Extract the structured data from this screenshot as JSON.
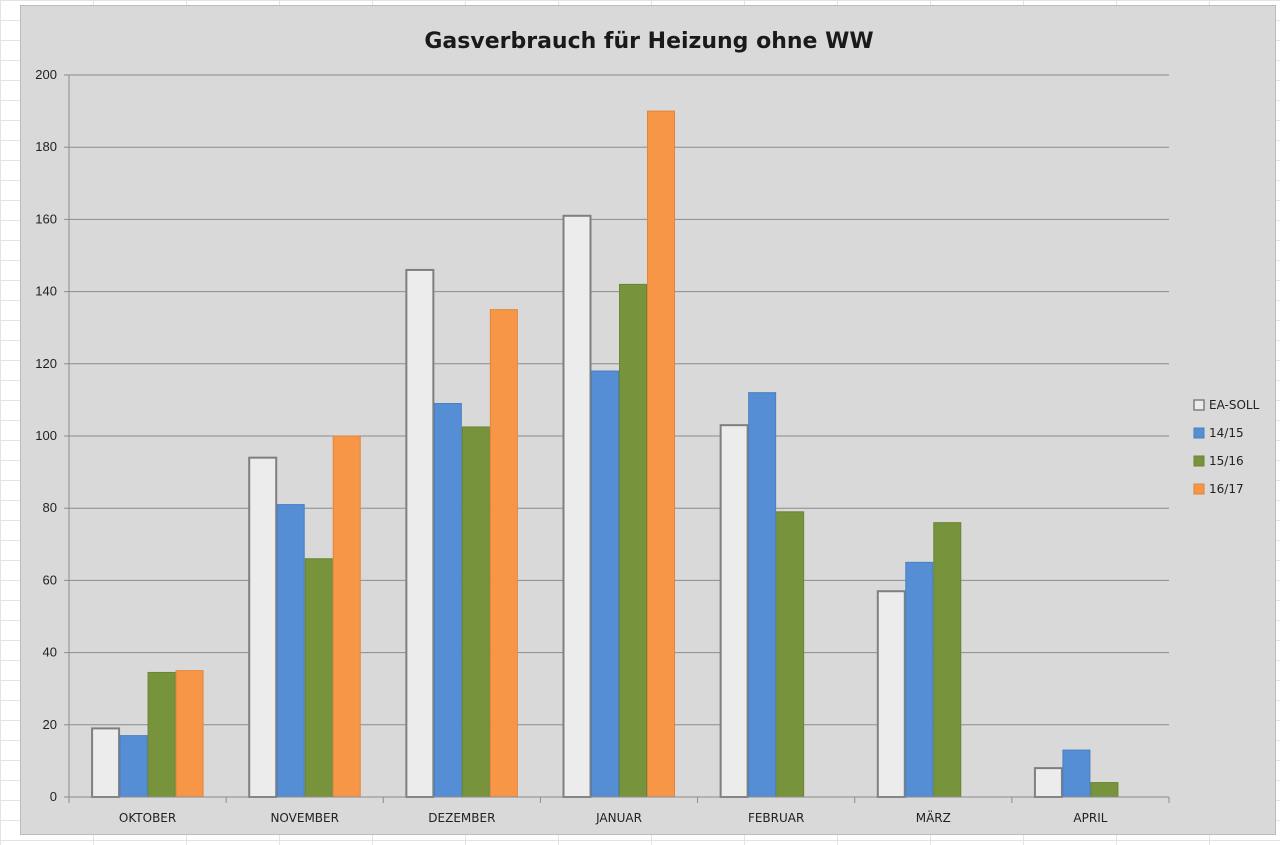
{
  "chart_data": {
    "type": "bar",
    "title": "Gasverbrauch für Heizung ohne WW",
    "xlabel": "",
    "ylabel": "",
    "ylim": [
      0,
      200
    ],
    "yticks": [
      0,
      20,
      40,
      60,
      80,
      100,
      120,
      140,
      160,
      180,
      200
    ],
    "grid": true,
    "legend_position": "right",
    "categories": [
      "OKTOBER",
      "NOVEMBER",
      "DEZEMBER",
      "JANUAR",
      "FEBRUAR",
      "MÄRZ",
      "APRIL"
    ],
    "series": [
      {
        "name": "EA-SOLL",
        "fill": "#ececec",
        "stroke": "#7f7f7f",
        "values": [
          19,
          94,
          146,
          161,
          103,
          57,
          8
        ]
      },
      {
        "name": "14/15",
        "fill": "#558ed5",
        "stroke": "#4a7fc0",
        "values": [
          17,
          81,
          109,
          118,
          112,
          65,
          13
        ]
      },
      {
        "name": "15/16",
        "fill": "#77933c",
        "stroke": "#6a8535",
        "values": [
          34.5,
          66,
          102.5,
          142,
          79,
          76,
          4
        ]
      },
      {
        "name": "16/17",
        "fill": "#f79646",
        "stroke": "#e0853a",
        "values": [
          35,
          100,
          135,
          190,
          null,
          null,
          null
        ]
      }
    ]
  }
}
